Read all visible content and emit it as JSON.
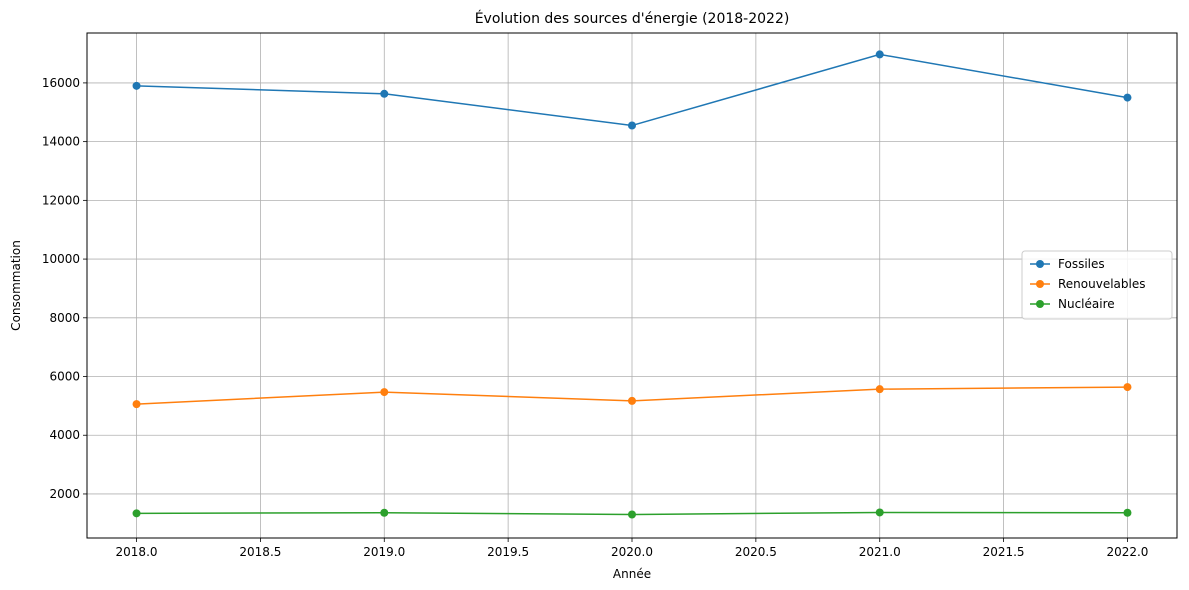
{
  "chart_data": {
    "type": "line",
    "title": "Évolution des sources d'énergie (2018-2022)",
    "xlabel": "Année",
    "ylabel": "Consommation",
    "x": [
      2018,
      2019,
      2020,
      2021,
      2022
    ],
    "xlim": [
      2017.8,
      2022.2
    ],
    "ylim": [
      500,
      17700
    ],
    "x_ticks": [
      "2018.0",
      "2018.5",
      "2019.0",
      "2019.5",
      "2020.0",
      "2020.5",
      "2021.0",
      "2021.5",
      "2022.0"
    ],
    "y_ticks": [
      "2000",
      "4000",
      "6000",
      "8000",
      "10000",
      "12000",
      "14000",
      "16000"
    ],
    "grid": true,
    "legend_position": "center-right",
    "series": [
      {
        "name": "Fossiles",
        "color": "#1f77b4",
        "values": [
          15900,
          15630,
          14550,
          16970,
          15500
        ]
      },
      {
        "name": "Renouvelables",
        "color": "#ff7f0e",
        "values": [
          5060,
          5470,
          5170,
          5570,
          5640
        ]
      },
      {
        "name": "Nucléaire",
        "color": "#2ca02c",
        "values": [
          1340,
          1360,
          1300,
          1370,
          1360
        ]
      }
    ]
  }
}
